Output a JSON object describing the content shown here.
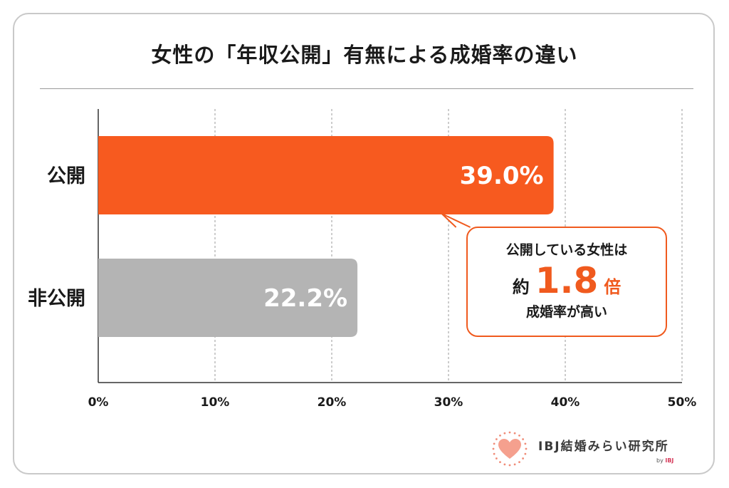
{
  "title": "女性の「年収公開」有無による成婚率の違い",
  "chart_data": {
    "type": "bar",
    "orientation": "horizontal",
    "categories": [
      "公開",
      "非公開"
    ],
    "values": [
      39.0,
      22.2
    ],
    "value_labels": [
      "39.0%",
      "22.2%"
    ],
    "colors": [
      "#f75a1f",
      "#b4b4b4"
    ],
    "xlim": [
      0,
      50
    ],
    "x_ticks": [
      0,
      10,
      20,
      30,
      40,
      50
    ],
    "x_tick_labels": [
      "0%",
      "10%",
      "20%",
      "30%",
      "40%",
      "50%"
    ],
    "grid": "vertical dashed",
    "title": "女性の「年収公開」有無による成婚率の違い",
    "xlabel": "",
    "ylabel": ""
  },
  "callout": {
    "line1": "公開している女性は",
    "prefix": "約",
    "number": "1.8",
    "suffix": "倍",
    "line3": "成婚率が高い",
    "accent": "#f05a1e"
  },
  "logo": {
    "text": "IBJ結婚みらい研究所",
    "by": "by",
    "brand": "IBJ",
    "icon": "heart-icon",
    "heart_color": "#f5a08e"
  }
}
